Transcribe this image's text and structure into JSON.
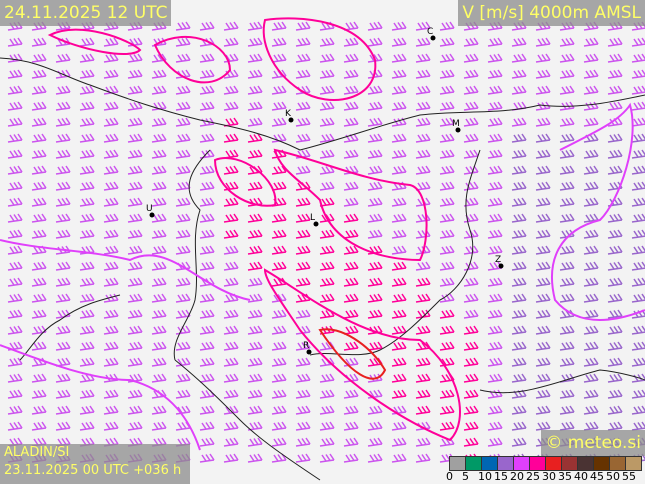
{
  "header": {
    "valid_time": "24.11.2025 12 UTC",
    "variable": "V [m/s] 4000m AMSL"
  },
  "footer": {
    "model": "ALADIN/SI",
    "run": "23.11.2025 00 UTC +036 h",
    "copyright": "© meteo.si"
  },
  "legend": {
    "ticks": [
      "0",
      "5",
      "10",
      "15",
      "20",
      "25",
      "30",
      "35",
      "40",
      "45",
      "50",
      "55"
    ],
    "colors": [
      "#a0a0a0",
      "#009966",
      "#0066b3",
      "#9966cc",
      "#e040fb",
      "#ff0099",
      "#e82020",
      "#993333",
      "#4a3333",
      "#663300",
      "#996633",
      "#bb9966"
    ]
  },
  "cities": [
    {
      "label": "C"
    },
    {
      "label": "K"
    },
    {
      "label": "M"
    },
    {
      "label": "L"
    },
    {
      "label": "U"
    },
    {
      "label": "Z"
    },
    {
      "label": "R"
    }
  ]
}
